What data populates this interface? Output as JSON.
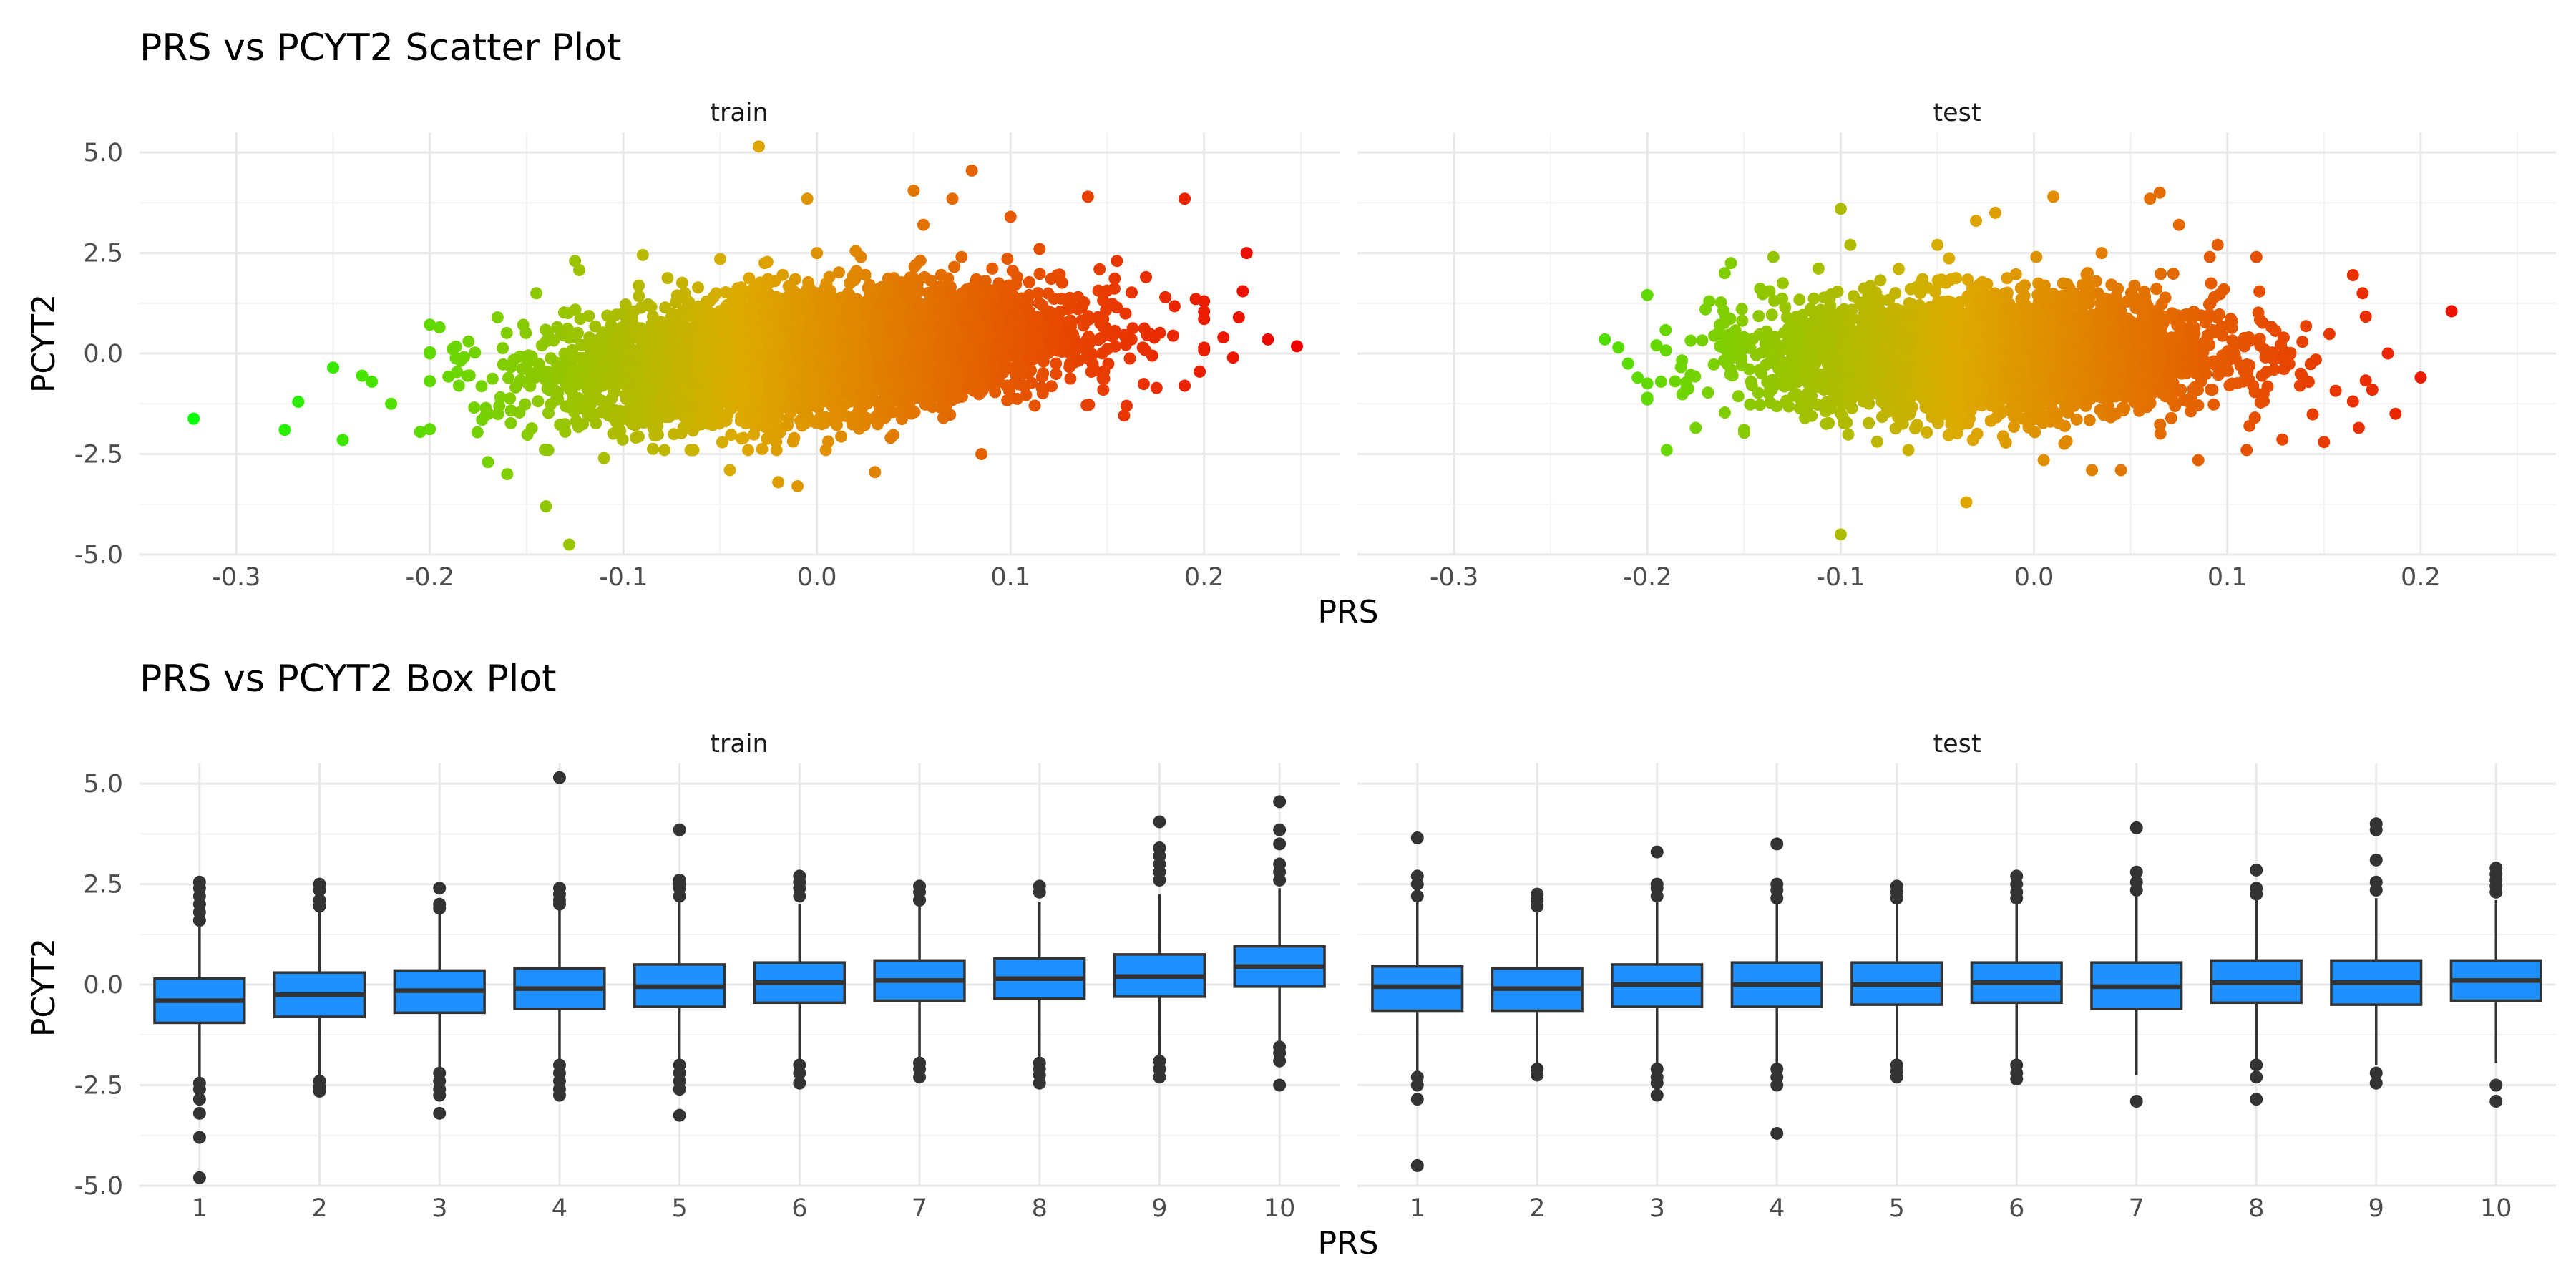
{
  "chart_data": [
    {
      "type": "scatter",
      "title": "PRS vs PCYT2 Scatter Plot",
      "xlabel": "PRS",
      "ylabel": "PCYT2",
      "xlim": [
        -0.35,
        0.27
      ],
      "ylim": [
        -5.0,
        5.5
      ],
      "xticks": [
        "-0.3",
        "-0.2",
        "-0.1",
        "0.0",
        "0.1",
        "0.2"
      ],
      "yticks": [
        "-5.0",
        "-2.5",
        "0.0",
        "2.5",
        "5.0"
      ],
      "grid": true,
      "color_scale": {
        "low": "#00ff00",
        "mid": "#ddaa00",
        "high": "#ee0000",
        "maps": "x"
      },
      "panels": [
        {
          "name": "train",
          "points": [
            [
              -0.322,
              -1.62
            ],
            [
              -0.275,
              -1.9
            ],
            [
              -0.268,
              -1.2
            ],
            [
              -0.245,
              -2.15
            ],
            [
              -0.25,
              -0.35
            ],
            [
              -0.235,
              -0.55
            ],
            [
              -0.22,
              -1.25
            ],
            [
              -0.23,
              -0.7
            ],
            [
              -0.205,
              -1.95
            ],
            [
              -0.2,
              0.0
            ],
            [
              -0.195,
              0.65
            ],
            [
              -0.185,
              -0.8
            ],
            [
              -0.18,
              0.3
            ],
            [
              -0.17,
              -2.7
            ],
            [
              -0.165,
              0.9
            ],
            [
              -0.16,
              -3.0
            ],
            [
              -0.145,
              1.5
            ],
            [
              -0.14,
              -3.8
            ],
            [
              -0.128,
              -4.75
            ],
            [
              -0.125,
              2.3
            ],
            [
              -0.11,
              -2.6
            ],
            [
              -0.09,
              2.45
            ],
            [
              -0.05,
              2.35
            ],
            [
              -0.045,
              -2.9
            ],
            [
              -0.03,
              5.15
            ],
            [
              -0.02,
              -3.2
            ],
            [
              -0.01,
              -3.3
            ],
            [
              0.0,
              2.5
            ],
            [
              -0.005,
              3.85
            ],
            [
              0.02,
              2.55
            ],
            [
              0.03,
              -2.95
            ],
            [
              0.05,
              4.05
            ],
            [
              0.055,
              3.2
            ],
            [
              0.07,
              3.85
            ],
            [
              0.08,
              4.55
            ],
            [
              0.1,
              3.4
            ],
            [
              0.085,
              -2.5
            ],
            [
              0.115,
              2.6
            ],
            [
              0.14,
              3.9
            ],
            [
              0.155,
              2.3
            ],
            [
              0.16,
              -1.3
            ],
            [
              0.17,
              1.9
            ],
            [
              0.18,
              1.4
            ],
            [
              0.19,
              3.85
            ],
            [
              0.19,
              -0.8
            ],
            [
              0.2,
              1.3
            ],
            [
              0.21,
              0.4
            ],
            [
              0.215,
              -0.1
            ],
            [
              0.218,
              0.9
            ],
            [
              0.22,
              1.55
            ],
            [
              0.222,
              2.5
            ],
            [
              0.233,
              0.35
            ],
            [
              0.248,
              0.18
            ]
          ]
        },
        {
          "name": "test",
          "points": [
            [
              -0.222,
              0.35
            ],
            [
              -0.215,
              0.15
            ],
            [
              -0.21,
              -0.25
            ],
            [
              -0.205,
              -0.6
            ],
            [
              -0.2,
              -1.1
            ],
            [
              -0.193,
              -0.7
            ],
            [
              -0.19,
              -2.4
            ],
            [
              -0.175,
              -1.85
            ],
            [
              -0.168,
              1.3
            ],
            [
              -0.16,
              2.0
            ],
            [
              -0.15,
              -1.9
            ],
            [
              -0.13,
              1.75
            ],
            [
              -0.1,
              3.6
            ],
            [
              -0.095,
              2.7
            ],
            [
              -0.1,
              -4.5
            ],
            [
              -0.07,
              2.1
            ],
            [
              -0.065,
              -2.4
            ],
            [
              -0.05,
              2.7
            ],
            [
              -0.03,
              3.3
            ],
            [
              -0.02,
              3.5
            ],
            [
              -0.035,
              -3.7
            ],
            [
              0.005,
              -2.65
            ],
            [
              0.01,
              3.9
            ],
            [
              0.03,
              -2.9
            ],
            [
              0.035,
              2.5
            ],
            [
              0.045,
              -2.9
            ],
            [
              0.06,
              3.85
            ],
            [
              0.065,
              4.0
            ],
            [
              0.075,
              3.2
            ],
            [
              0.085,
              -2.65
            ],
            [
              0.095,
              2.7
            ],
            [
              0.11,
              -2.4
            ],
            [
              0.115,
              2.4
            ],
            [
              0.15,
              -2.2
            ],
            [
              0.165,
              1.95
            ],
            [
              0.17,
              1.5
            ],
            [
              0.168,
              -1.85
            ],
            [
              0.175,
              -0.9
            ],
            [
              0.183,
              0.0
            ],
            [
              0.187,
              -1.5
            ],
            [
              0.216,
              1.05
            ]
          ]
        }
      ]
    },
    {
      "type": "box",
      "title": "PRS vs PCYT2 Box Plot",
      "xlabel": "PRS",
      "ylabel": "PCYT2",
      "categories": [
        "1",
        "2",
        "3",
        "4",
        "5",
        "6",
        "7",
        "8",
        "9",
        "10"
      ],
      "ylim": [
        -5.0,
        5.5
      ],
      "yticks": [
        "-5.0",
        "-2.5",
        "0.0",
        "2.5",
        "5.0"
      ],
      "box_color": "#1e90ff",
      "grid": true,
      "panels": [
        {
          "name": "train",
          "boxes": [
            {
              "q1": -0.95,
              "median": -0.4,
              "q3": 0.15,
              "lo": -2.35,
              "hi": 2.3,
              "out": [
                2.55,
                2.4,
                2.2,
                2.0,
                1.8,
                1.6,
                -2.45,
                -2.6,
                -2.85,
                -3.2,
                -3.8,
                -4.8
              ]
            },
            {
              "q1": -0.8,
              "median": -0.25,
              "q3": 0.3,
              "lo": -2.3,
              "hi": 1.95,
              "out": [
                2.5,
                2.35,
                2.1,
                1.95,
                -2.4,
                -2.55,
                -2.65
              ]
            },
            {
              "q1": -0.7,
              "median": -0.15,
              "q3": 0.35,
              "lo": -2.1,
              "hi": 2.0,
              "out": [
                2.4,
                2.0,
                1.9,
                -2.2,
                -2.4,
                -2.6,
                -2.75,
                -3.2
              ]
            },
            {
              "q1": -0.6,
              "median": -0.1,
              "q3": 0.4,
              "lo": -1.95,
              "hi": 1.95,
              "out": [
                5.15,
                2.4,
                2.25,
                2.1,
                2.0,
                -2.0,
                -2.2,
                -2.4,
                -2.6,
                -2.75
              ]
            },
            {
              "q1": -0.55,
              "median": -0.05,
              "q3": 0.5,
              "lo": -1.95,
              "hi": 2.1,
              "out": [
                3.85,
                2.6,
                2.5,
                2.4,
                2.2,
                -2.0,
                -2.2,
                -2.4,
                -2.6,
                -3.25
              ]
            },
            {
              "q1": -0.45,
              "median": 0.05,
              "q3": 0.55,
              "lo": -1.9,
              "hi": 2.0,
              "out": [
                2.7,
                2.55,
                2.4,
                2.2,
                -2.0,
                -2.2,
                -2.45
              ]
            },
            {
              "q1": -0.4,
              "median": 0.1,
              "q3": 0.6,
              "lo": -1.85,
              "hi": 2.0,
              "out": [
                2.45,
                2.3,
                2.1,
                -1.95,
                -2.1,
                -2.3
              ]
            },
            {
              "q1": -0.35,
              "median": 0.15,
              "q3": 0.65,
              "lo": -1.8,
              "hi": 2.05,
              "out": [
                2.45,
                2.3,
                -1.95,
                -2.1,
                -2.25,
                -2.45
              ]
            },
            {
              "q1": -0.3,
              "median": 0.2,
              "q3": 0.75,
              "lo": -1.75,
              "hi": 2.25,
              "out": [
                4.05,
                3.4,
                3.2,
                3.0,
                2.8,
                2.6,
                -1.9,
                -2.1,
                -2.3
              ]
            },
            {
              "q1": -0.05,
              "median": 0.45,
              "q3": 0.95,
              "lo": -1.5,
              "hi": 2.4,
              "out": [
                4.55,
                3.85,
                3.5,
                3.0,
                2.8,
                2.6,
                -1.55,
                -1.7,
                -1.9,
                -2.5
              ]
            }
          ]
        },
        {
          "name": "test",
          "boxes": [
            {
              "q1": -0.65,
              "median": -0.05,
              "q3": 0.45,
              "lo": -2.2,
              "hi": 2.05,
              "out": [
                3.65,
                2.7,
                2.5,
                2.2,
                -2.3,
                -2.5,
                -2.85,
                -4.5
              ]
            },
            {
              "q1": -0.65,
              "median": -0.1,
              "q3": 0.4,
              "lo": -2.05,
              "hi": 1.95,
              "out": [
                2.25,
                2.1,
                1.95,
                -2.1,
                -2.25
              ]
            },
            {
              "q1": -0.55,
              "median": 0.0,
              "q3": 0.5,
              "lo": -2.0,
              "hi": 2.05,
              "out": [
                3.3,
                2.5,
                2.4,
                2.2,
                -2.1,
                -2.3,
                -2.45,
                -2.75
              ]
            },
            {
              "q1": -0.55,
              "median": 0.0,
              "q3": 0.55,
              "lo": -2.0,
              "hi": 2.1,
              "out": [
                3.5,
                2.5,
                2.35,
                2.15,
                -2.1,
                -2.3,
                -2.5,
                -3.7
              ]
            },
            {
              "q1": -0.5,
              "median": 0.0,
              "q3": 0.55,
              "lo": -1.95,
              "hi": 2.05,
              "out": [
                2.45,
                2.3,
                2.15,
                -2.0,
                -2.15,
                -2.3
              ]
            },
            {
              "q1": -0.45,
              "median": 0.05,
              "q3": 0.55,
              "lo": -1.9,
              "hi": 2.05,
              "out": [
                2.7,
                2.5,
                2.3,
                2.15,
                -2.0,
                -2.2,
                -2.35
              ]
            },
            {
              "q1": -0.6,
              "median": -0.05,
              "q3": 0.55,
              "lo": -2.25,
              "hi": 2.2,
              "out": [
                3.9,
                2.8,
                2.55,
                2.35,
                -2.9
              ]
            },
            {
              "q1": -0.45,
              "median": 0.05,
              "q3": 0.6,
              "lo": -1.95,
              "hi": 2.15,
              "out": [
                2.85,
                2.4,
                2.25,
                -2.0,
                -2.3,
                -2.85
              ]
            },
            {
              "q1": -0.5,
              "median": 0.05,
              "q3": 0.6,
              "lo": -2.0,
              "hi": 2.15,
              "out": [
                4.0,
                3.85,
                3.1,
                2.55,
                2.35,
                -2.2,
                -2.45
              ]
            },
            {
              "q1": -0.4,
              "median": 0.1,
              "q3": 0.6,
              "lo": -1.95,
              "hi": 2.1,
              "out": [
                2.9,
                2.75,
                2.6,
                2.45,
                2.3,
                -2.5,
                -2.9
              ]
            }
          ]
        }
      ]
    }
  ]
}
